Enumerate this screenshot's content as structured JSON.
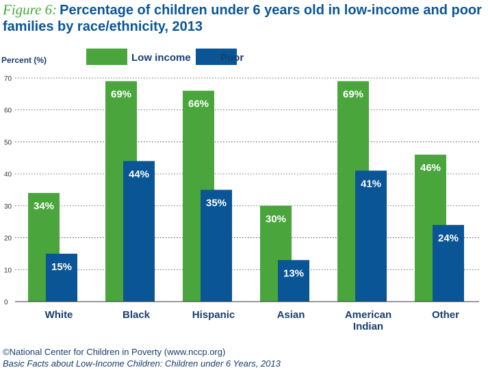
{
  "figure_label": "Figure 6:",
  "title": "Percentage of children under 6 years old in low-income and poor families by race/ethnicity, 2013",
  "colors": {
    "low_income": "#49a53c",
    "poor": "#0a5596",
    "title": "#0a5596",
    "axis_text": "#1a3d6e"
  },
  "chart_data": {
    "type": "bar",
    "ylabel": "Percent (%)",
    "ylim": [
      0,
      70
    ],
    "yticks": [
      0,
      10,
      20,
      30,
      40,
      50,
      60,
      70
    ],
    "grid": true,
    "legend_position": "top",
    "categories": [
      [
        "White"
      ],
      [
        "Black"
      ],
      [
        "Hispanic"
      ],
      [
        "Asian"
      ],
      [
        "American",
        "Indian"
      ],
      [
        "Other"
      ]
    ],
    "series": [
      {
        "name": "Low income",
        "values": [
          34,
          69,
          66,
          30,
          69,
          46
        ],
        "labels": [
          "34%",
          "69%",
          "66%",
          "30%",
          "69%",
          "46%"
        ]
      },
      {
        "name": "Poor",
        "values": [
          15,
          44,
          35,
          13,
          41,
          24
        ],
        "labels": [
          "15%",
          "44%",
          "35%",
          "13%",
          "41%",
          "24%"
        ]
      }
    ]
  },
  "footer": {
    "credit": "©National Center for Children in Poverty (www.nccp.org)",
    "source": "Basic Facts about Low-Income Children: Children under 6 Years, 2013"
  }
}
